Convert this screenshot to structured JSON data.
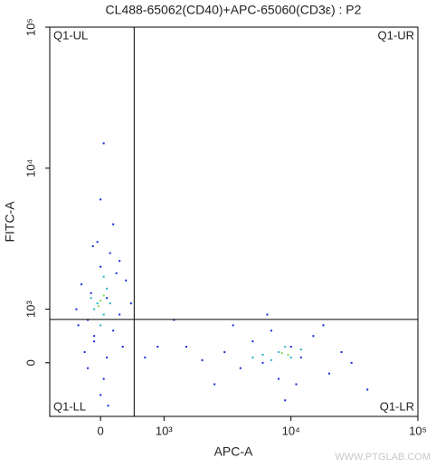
{
  "chart_data": {
    "type": "scatter",
    "title": "CL488-65062(CD40)+APC-65060(CD3ε) : P2",
    "x_label": "APC-A",
    "y_label": "FITC-A",
    "watermark": "WWW.PTGLAB.COM",
    "xscale": "symlog",
    "xlinthresh": 1000,
    "xlinscale": 0.5,
    "yscale": "symlog",
    "ylinthresh": 1000,
    "ylinscale": 0.38,
    "xlim": [
      -800,
      100000
    ],
    "ylim": [
      -1000,
      100000
    ],
    "xticks": [
      0,
      {
        "value": 1000,
        "label": "10³"
      },
      {
        "value": 10000,
        "label": "10⁴"
      },
      {
        "value": 100000,
        "label": "10⁵"
      }
    ],
    "yticks": [
      0,
      {
        "value": 1000,
        "label": "10³"
      },
      {
        "value": 10000,
        "label": "10⁴"
      },
      {
        "value": 100000,
        "label": "10⁵"
      }
    ],
    "gates": {
      "x": 530,
      "y": 810
    },
    "quadrants": {
      "ul": "Q1-UL",
      "ur": "Q1-UR",
      "ll": "Q1-LL",
      "lr": "Q1-LR"
    },
    "series": [
      {
        "color": "#1029d8",
        "x": [
          -300,
          -200,
          -100,
          0,
          100,
          200,
          300,
          -250,
          50,
          -50,
          150,
          250,
          -150,
          350,
          -350,
          400,
          0,
          100,
          -200,
          200,
          0,
          50,
          -100,
          300,
          480,
          -380,
          120,
          -120,
          3000,
          4000,
          5000,
          6000,
          7000,
          8000,
          10000,
          12000,
          15000,
          20000,
          25000,
          3500,
          2000,
          1500,
          30000,
          40000,
          9000,
          6500,
          11000,
          18000,
          2500,
          1200,
          900,
          700
        ],
        "y": [
          1500,
          800,
          400,
          2000,
          1200,
          600,
          900,
          200,
          -300,
          3000,
          2500,
          1800,
          1300,
          300,
          700,
          1600,
          -600,
          100,
          -100,
          4000,
          6000,
          15000,
          500,
          2200,
          1100,
          1000,
          -800,
          2800,
          200,
          -100,
          400,
          0,
          600,
          -300,
          300,
          100,
          500,
          -200,
          200,
          700,
          50,
          300,
          0,
          -500,
          -700,
          900,
          -400,
          700,
          -400,
          800,
          300,
          100
        ]
      },
      {
        "color": "#22b4c8",
        "x": [
          -50,
          50,
          100,
          -100,
          0,
          150,
          -150,
          50,
          6000,
          8000,
          10000,
          7000,
          12000,
          9000,
          5000
        ],
        "y": [
          1100,
          900,
          1400,
          1000,
          700,
          1100,
          1200,
          1700,
          150,
          200,
          100,
          50,
          250,
          300,
          100
        ]
      },
      {
        "color": "#7ed957",
        "x": [
          0,
          50,
          -30,
          8500,
          9500
        ],
        "y": [
          1150,
          1250,
          1050,
          180,
          150
        ]
      }
    ]
  }
}
